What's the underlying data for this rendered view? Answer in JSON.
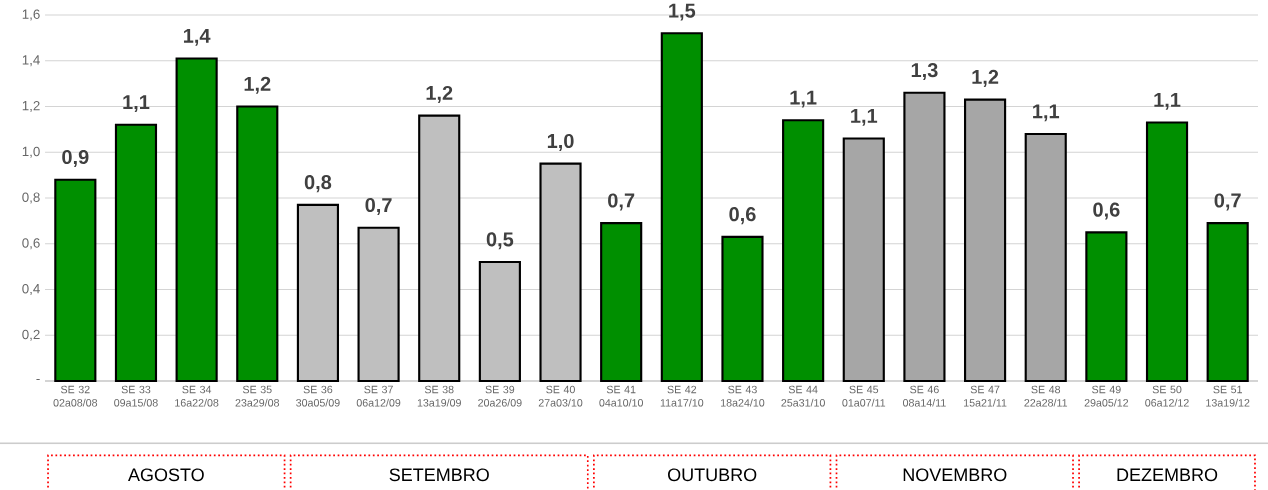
{
  "chart_data": {
    "type": "bar",
    "categories": [
      "SE 32 02a08/08",
      "SE 33 09a15/08",
      "SE 34 16a22/08",
      "SE 35 23a29/08",
      "SE 36 30a05/09",
      "SE 37 06a12/09",
      "SE 38 13a19/09",
      "SE 39 20a26/09",
      "SE 40 27a03/10",
      "SE 41 04a10/10",
      "SE 42 11a17/10",
      "SE 43 18a24/10",
      "SE 44 25a31/10",
      "SE 45 01a07/11",
      "SE 46 08a14/11",
      "SE 47 15a21/11",
      "SE 48 22a28/11",
      "SE 49 29a05/12",
      "SE 50 06a12/12",
      "SE 51 13a19/12"
    ],
    "values": [
      0.88,
      1.12,
      1.41,
      1.2,
      0.77,
      0.67,
      1.16,
      0.52,
      0.95,
      0.69,
      1.52,
      0.63,
      1.14,
      1.06,
      1.26,
      1.23,
      1.08,
      0.65,
      1.13,
      0.69
    ],
    "value_labels": [
      "0,9",
      "1,1",
      "1,4",
      "1,2",
      "0,8",
      "0,7",
      "1,2",
      "0,5",
      "1,0",
      "0,7",
      "1,5",
      "0,6",
      "1,1",
      "1,1",
      "1,3",
      "1,2",
      "1,1",
      "0,6",
      "1,1",
      "0,7"
    ],
    "colors": [
      "#008f00",
      "#008f00",
      "#008f00",
      "#008f00",
      "#bfbfbf",
      "#bfbfbf",
      "#bfbfbf",
      "#bfbfbf",
      "#bfbfbf",
      "#008f00",
      "#008f00",
      "#008f00",
      "#008f00",
      "#a6a6a6",
      "#a6a6a6",
      "#a6a6a6",
      "#a6a6a6",
      "#008f00",
      "#008f00",
      "#008f00"
    ],
    "ylim": [
      0,
      1.6
    ],
    "yticks": [
      {
        "value": 0,
        "label": "-"
      },
      {
        "value": 0.2,
        "label": "0,2"
      },
      {
        "value": 0.4,
        "label": "0,4"
      },
      {
        "value": 0.6,
        "label": "0,6"
      },
      {
        "value": 0.8,
        "label": "0,8"
      },
      {
        "value": 1.0,
        "label": "1,0"
      },
      {
        "value": 1.2,
        "label": "1,2"
      },
      {
        "value": 1.4,
        "label": "1,4"
      },
      {
        "value": 1.6,
        "label": "1,6"
      }
    ],
    "grid": "y",
    "annotations": [
      "AGOSTO",
      "SETEMBRO",
      "OUTUBRO",
      "NOVEMBRO",
      "DEZEMBRO"
    ]
  }
}
